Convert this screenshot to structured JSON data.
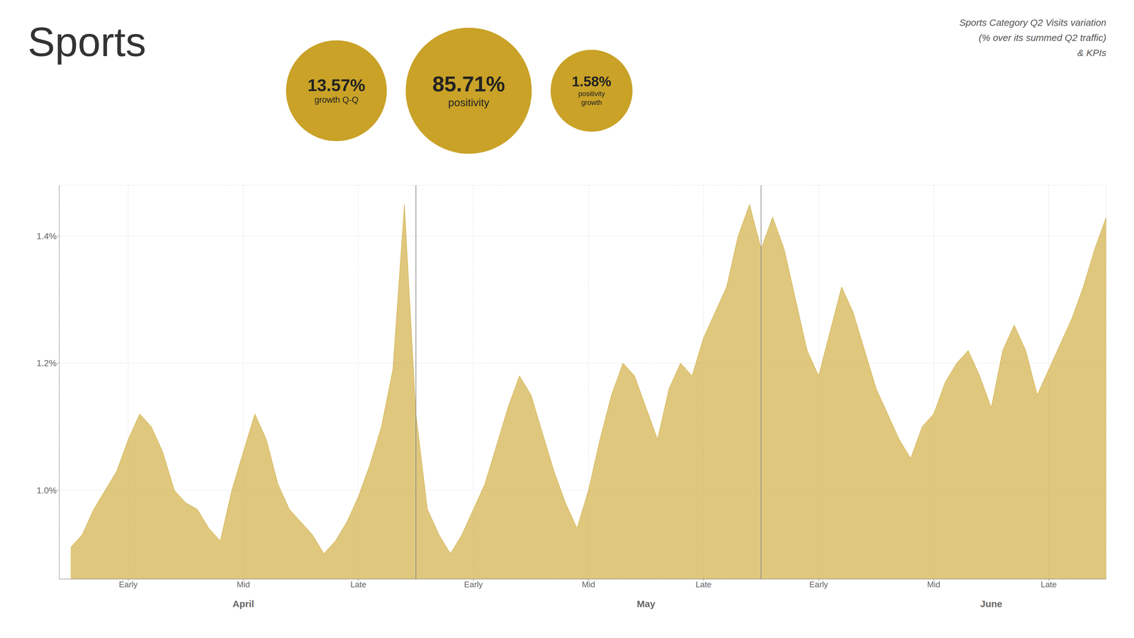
{
  "chart_data": {
    "type": "area",
    "title": "Sports",
    "subtitle": "Sports Category Q2 Visits variation\n(% over its summed Q2 traffic)\n& KPIs",
    "color": "#C9A227",
    "x": [
      0,
      1,
      2,
      3,
      4,
      5,
      6,
      7,
      8,
      9,
      10,
      11,
      12,
      13,
      14,
      15,
      16,
      17,
      18,
      19,
      20,
      21,
      22,
      23,
      24,
      25,
      26,
      27,
      28,
      29,
      30,
      31,
      32,
      33,
      34,
      35,
      36,
      37,
      38,
      39,
      40,
      41,
      42,
      43,
      44,
      45,
      46,
      47,
      48,
      49,
      50,
      51,
      52,
      53,
      54,
      55,
      56,
      57,
      58,
      59,
      60,
      61,
      62,
      63,
      64,
      65,
      66,
      67,
      68,
      69,
      70,
      71,
      72,
      73,
      74,
      75,
      76,
      77,
      78,
      79,
      80,
      81,
      82,
      83,
      84,
      85,
      86,
      87,
      88,
      89,
      90
    ],
    "values": [
      0.0091,
      0.0093,
      0.0097,
      0.01,
      0.0103,
      0.0108,
      0.0112,
      0.011,
      0.0106,
      0.01,
      0.0098,
      0.0097,
      0.0094,
      0.0092,
      0.01,
      0.0106,
      0.0112,
      0.0108,
      0.0101,
      0.0097,
      0.0095,
      0.0093,
      0.009,
      0.0092,
      0.0095,
      0.0099,
      0.0104,
      0.011,
      0.0119,
      0.0145,
      0.0112,
      0.0097,
      0.0093,
      0.009,
      0.0093,
      0.0097,
      0.0101,
      0.0107,
      0.0113,
      0.0118,
      0.0115,
      0.0109,
      0.0103,
      0.0098,
      0.0094,
      0.01,
      0.0108,
      0.0115,
      0.012,
      0.0118,
      0.0113,
      0.0108,
      0.0116,
      0.012,
      0.0118,
      0.0124,
      0.0128,
      0.0132,
      0.014,
      0.0145,
      0.0138,
      0.0143,
      0.0138,
      0.013,
      0.0122,
      0.0118,
      0.0125,
      0.0132,
      0.0128,
      0.0122,
      0.0116,
      0.0112,
      0.0108,
      0.0105,
      0.011,
      0.0112,
      0.0117,
      0.012,
      0.0122,
      0.0118,
      0.0113,
      0.0122,
      0.0126,
      0.0122,
      0.0115,
      0.0119,
      0.0123,
      0.0127,
      0.0132,
      0.0138,
      0.0143
    ],
    "xlim": [
      -1,
      90
    ],
    "xticks": [
      {
        "value": 5,
        "label": "Early"
      },
      {
        "value": 15,
        "label": "Mid"
      },
      {
        "value": 25,
        "label": "Late"
      },
      {
        "value": 35,
        "label": "Early"
      },
      {
        "value": 45,
        "label": "Mid"
      },
      {
        "value": 55,
        "label": "Late"
      },
      {
        "value": 65,
        "label": "Early"
      },
      {
        "value": 75,
        "label": "Mid"
      },
      {
        "value": 85,
        "label": "Late"
      }
    ],
    "ylim": [
      0.0086,
      0.0148
    ],
    "yticks": [
      {
        "value": 0.01,
        "label": "1.0%"
      },
      {
        "value": 0.012,
        "label": "1.2%"
      },
      {
        "value": 0.014,
        "label": "1.4%"
      }
    ],
    "grid": true,
    "annotations": [
      {
        "text": "April",
        "x": 15
      },
      {
        "text": "May",
        "x": 50
      },
      {
        "text": "June",
        "x": 80
      }
    ],
    "vlines": [
      30,
      60
    ],
    "kpis": [
      {
        "text": "13.57%",
        "caption": [
          "growth Q-Q"
        ]
      },
      {
        "text": "85.71%",
        "caption": [
          "positivity"
        ]
      },
      {
        "text": "1.58%",
        "caption": [
          "positivity",
          "growth"
        ]
      }
    ]
  }
}
